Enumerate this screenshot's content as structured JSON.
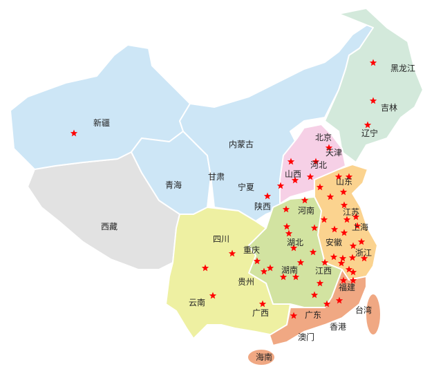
{
  "regions": {
    "northwest": {
      "color": "#cde6f6",
      "provinces": [
        "新疆",
        "青海",
        "甘肃",
        "内蒙古",
        "宁夏",
        "陕西"
      ]
    },
    "tibet": {
      "color": "#e2e2e2",
      "provinces": [
        "西藏"
      ]
    },
    "northeast": {
      "color": "#d3e9db",
      "provinces": [
        "黑龙江",
        "吉林",
        "辽宁"
      ]
    },
    "north": {
      "color": "#f6d0e6",
      "provinces": [
        "北京",
        "天津",
        "河北",
        "山西"
      ]
    },
    "east": {
      "color": "#fbd38f",
      "provinces": [
        "山东",
        "江苏",
        "上海",
        "安徽",
        "浙江"
      ]
    },
    "central": {
      "color": "#d2e3a1",
      "provinces": [
        "河南",
        "湖北",
        "湖南",
        "江西"
      ]
    },
    "southwest": {
      "color": "#eef0a2",
      "provinces": [
        "四川",
        "重庆",
        "贵州",
        "云南",
        "广西"
      ]
    },
    "south": {
      "color": "#f0a883",
      "provinces": [
        "广东",
        "福建",
        "海南",
        "台湾"
      ]
    }
  },
  "labels": {
    "xinjiang": "新疆",
    "tibet": "西藏",
    "qinghai": "青海",
    "gansu": "甘肃",
    "neimenggu": "内蒙古",
    "ningxia": "宁夏",
    "shaanxi": "陕西",
    "heilongjiang": "黑龙江",
    "jilin": "吉林",
    "liaoning": "辽宁",
    "beijing": "北京",
    "tianjin": "天津",
    "hebei": "河北",
    "shanxi": "山西",
    "shandong": "山东",
    "henan": "河南",
    "jiangsu": "江苏",
    "shanghai": "上海",
    "anhui": "安徽",
    "hubei": "湖北",
    "zhejiang": "浙江",
    "sichuan": "四川",
    "chongqing": "重庆",
    "hunan": "湖南",
    "jiangxi": "江西",
    "guizhou": "贵州",
    "fujian": "福建",
    "yunnan": "云南",
    "guangxi": "广西",
    "guangdong": "广东",
    "taiwan": "台湾",
    "hongkong": "香港",
    "macau": "澳门",
    "hainan": "海南"
  },
  "marker": {
    "icon": "star-icon",
    "color": "#ff0000"
  }
}
